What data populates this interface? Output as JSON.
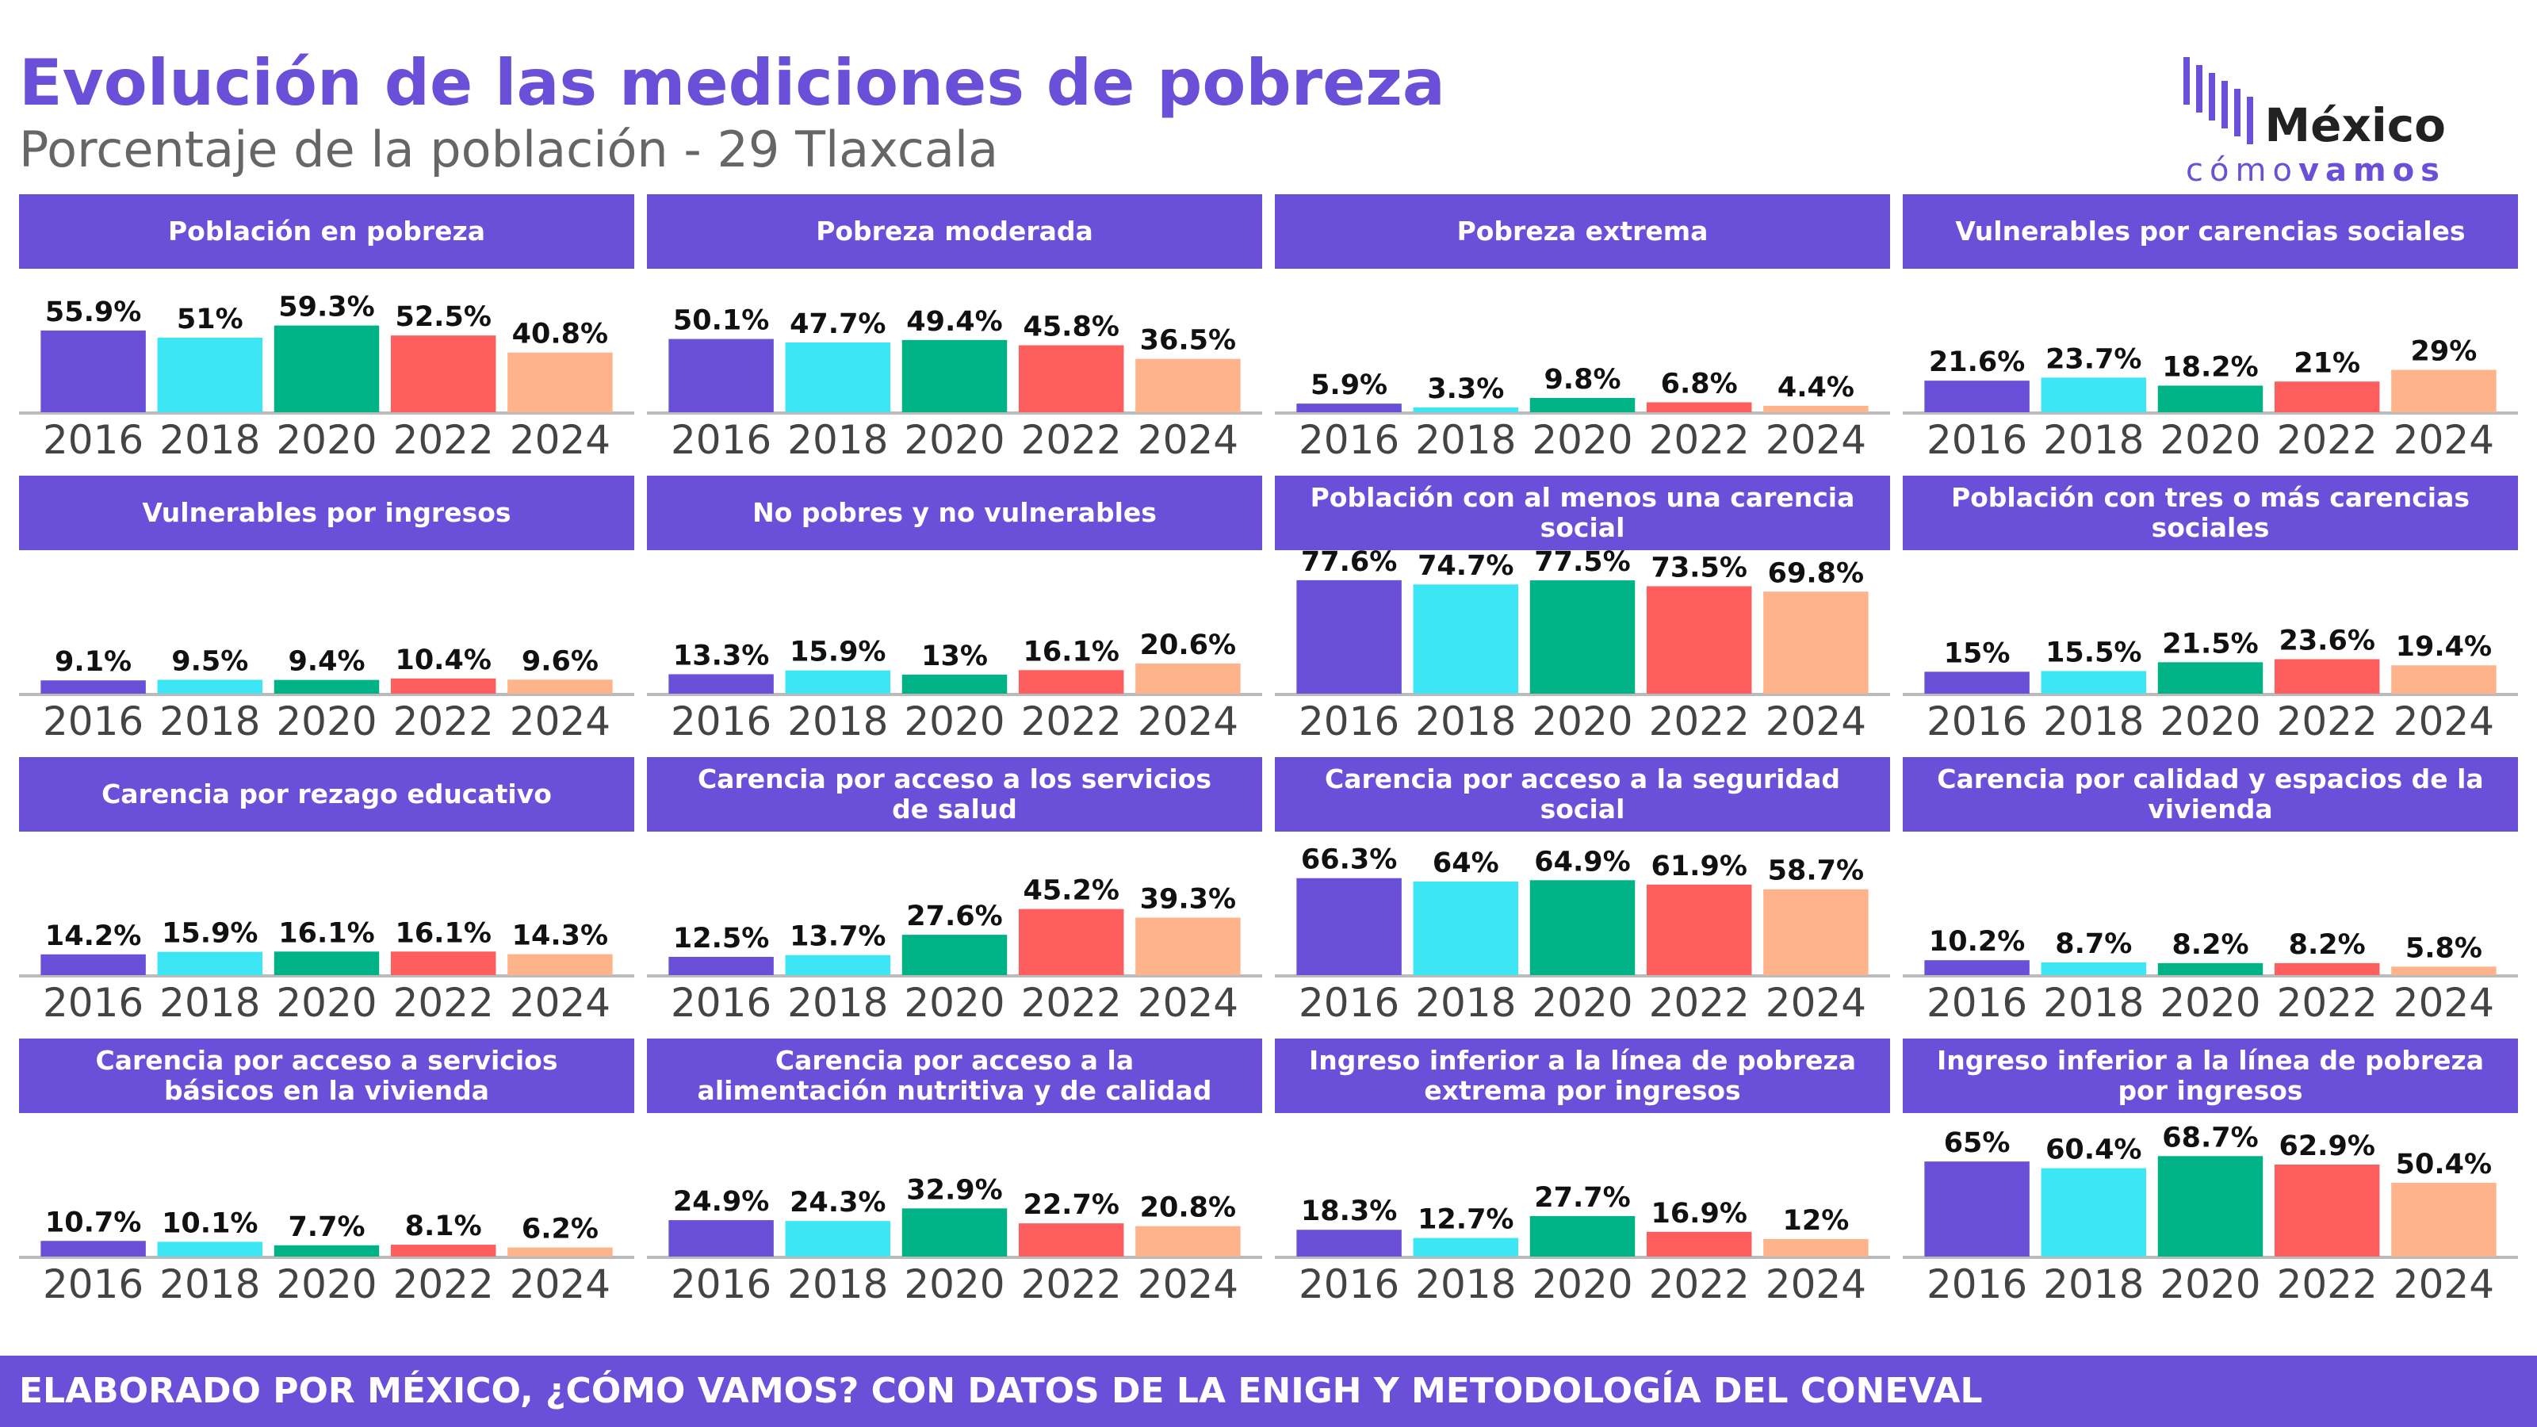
{
  "header": {
    "title": "Evolución de las mediciones de pobreza",
    "subtitle": "Porcentaje de la población - 29 Tlaxcala"
  },
  "logo": {
    "name": "México",
    "tag_a": "cómo",
    "tag_b": "vamos"
  },
  "footer": "ELABORADO POR MÉXICO, ¿CÓMO VAMOS? CON DATOS DE LA ENIGH Y METODOLOGÍA DEL CONEVAL",
  "chart_data": [
    {
      "type": "bar",
      "title": "Población en pobreza",
      "categories": [
        "2016",
        "2018",
        "2020",
        "2022",
        "2024"
      ],
      "values": [
        55.9,
        51,
        59.3,
        52.5,
        40.8
      ],
      "value_labels": [
        "55.9%",
        "51%",
        "59.3%",
        "52.5%",
        "40.8%"
      ],
      "colors": [
        "#6a4fd8",
        "#3de6f5",
        "#00b386",
        "#ff5e5e",
        "#ffb38a"
      ],
      "ylim": [
        0,
        90
      ]
    },
    {
      "type": "bar",
      "title": "Pobreza moderada",
      "categories": [
        "2016",
        "2018",
        "2020",
        "2022",
        "2024"
      ],
      "values": [
        50.1,
        47.7,
        49.4,
        45.8,
        36.5
      ],
      "value_labels": [
        "50.1%",
        "47.7%",
        "49.4%",
        "45.8%",
        "36.5%"
      ],
      "colors": [
        "#6a4fd8",
        "#3de6f5",
        "#00b386",
        "#ff5e5e",
        "#ffb38a"
      ],
      "ylim": [
        0,
        90
      ]
    },
    {
      "type": "bar",
      "title": "Pobreza extrema",
      "categories": [
        "2016",
        "2018",
        "2020",
        "2022",
        "2024"
      ],
      "values": [
        5.9,
        3.3,
        9.8,
        6.8,
        4.4
      ],
      "value_labels": [
        "5.9%",
        "3.3%",
        "9.8%",
        "6.8%",
        "4.4%"
      ],
      "colors": [
        "#6a4fd8",
        "#3de6f5",
        "#00b386",
        "#ff5e5e",
        "#ffb38a"
      ],
      "ylim": [
        0,
        90
      ]
    },
    {
      "type": "bar",
      "title": "Vulnerables por carencias sociales",
      "categories": [
        "2016",
        "2018",
        "2020",
        "2022",
        "2024"
      ],
      "values": [
        21.6,
        23.7,
        18.2,
        21,
        29
      ],
      "value_labels": [
        "21.6%",
        "23.7%",
        "18.2%",
        "21%",
        "29%"
      ],
      "colors": [
        "#6a4fd8",
        "#3de6f5",
        "#00b386",
        "#ff5e5e",
        "#ffb38a"
      ],
      "ylim": [
        0,
        90
      ]
    },
    {
      "type": "bar",
      "title": "Vulnerables por ingresos",
      "categories": [
        "2016",
        "2018",
        "2020",
        "2022",
        "2024"
      ],
      "values": [
        9.1,
        9.5,
        9.4,
        10.4,
        9.6
      ],
      "value_labels": [
        "9.1%",
        "9.5%",
        "9.4%",
        "10.4%",
        "9.6%"
      ],
      "colors": [
        "#6a4fd8",
        "#3de6f5",
        "#00b386",
        "#ff5e5e",
        "#ffb38a"
      ],
      "ylim": [
        0,
        90
      ]
    },
    {
      "type": "bar",
      "title": "No pobres y no vulnerables",
      "categories": [
        "2016",
        "2018",
        "2020",
        "2022",
        "2024"
      ],
      "values": [
        13.3,
        15.9,
        13,
        16.1,
        20.6
      ],
      "value_labels": [
        "13.3%",
        "15.9%",
        "13%",
        "16.1%",
        "20.6%"
      ],
      "colors": [
        "#6a4fd8",
        "#3de6f5",
        "#00b386",
        "#ff5e5e",
        "#ffb38a"
      ],
      "ylim": [
        0,
        90
      ]
    },
    {
      "type": "bar",
      "title": "Población con al menos una carencia social",
      "categories": [
        "2016",
        "2018",
        "2020",
        "2022",
        "2024"
      ],
      "values": [
        77.6,
        74.7,
        77.5,
        73.5,
        69.8
      ],
      "value_labels": [
        "77.6%",
        "74.7%",
        "77.5%",
        "73.5%",
        "69.8%"
      ],
      "colors": [
        "#6a4fd8",
        "#3de6f5",
        "#00b386",
        "#ff5e5e",
        "#ffb38a"
      ],
      "ylim": [
        0,
        90
      ]
    },
    {
      "type": "bar",
      "title": "Población con tres o más carencias sociales",
      "categories": [
        "2016",
        "2018",
        "2020",
        "2022",
        "2024"
      ],
      "values": [
        15,
        15.5,
        21.5,
        23.6,
        19.4
      ],
      "value_labels": [
        "15%",
        "15.5%",
        "21.5%",
        "23.6%",
        "19.4%"
      ],
      "colors": [
        "#6a4fd8",
        "#3de6f5",
        "#00b386",
        "#ff5e5e",
        "#ffb38a"
      ],
      "ylim": [
        0,
        90
      ]
    },
    {
      "type": "bar",
      "title": "Carencia por rezago educativo",
      "categories": [
        "2016",
        "2018",
        "2020",
        "2022",
        "2024"
      ],
      "values": [
        14.2,
        15.9,
        16.1,
        16.1,
        14.3
      ],
      "value_labels": [
        "14.2%",
        "15.9%",
        "16.1%",
        "16.1%",
        "14.3%"
      ],
      "colors": [
        "#6a4fd8",
        "#3de6f5",
        "#00b386",
        "#ff5e5e",
        "#ffb38a"
      ],
      "ylim": [
        0,
        90
      ]
    },
    {
      "type": "bar",
      "title": "Carencia por acceso a los servicios de salud",
      "categories": [
        "2016",
        "2018",
        "2020",
        "2022",
        "2024"
      ],
      "values": [
        12.5,
        13.7,
        27.6,
        45.2,
        39.3
      ],
      "value_labels": [
        "12.5%",
        "13.7%",
        "27.6%",
        "45.2%",
        "39.3%"
      ],
      "colors": [
        "#6a4fd8",
        "#3de6f5",
        "#00b386",
        "#ff5e5e",
        "#ffb38a"
      ],
      "ylim": [
        0,
        90
      ]
    },
    {
      "type": "bar",
      "title": "Carencia por acceso a la seguridad social",
      "categories": [
        "2016",
        "2018",
        "2020",
        "2022",
        "2024"
      ],
      "values": [
        66.3,
        64,
        64.9,
        61.9,
        58.7
      ],
      "value_labels": [
        "66.3%",
        "64%",
        "64.9%",
        "61.9%",
        "58.7%"
      ],
      "colors": [
        "#6a4fd8",
        "#3de6f5",
        "#00b386",
        "#ff5e5e",
        "#ffb38a"
      ],
      "ylim": [
        0,
        90
      ]
    },
    {
      "type": "bar",
      "title": "Carencia por calidad y espacios de la vivienda",
      "categories": [
        "2016",
        "2018",
        "2020",
        "2022",
        "2024"
      ],
      "values": [
        10.2,
        8.7,
        8.2,
        8.2,
        5.8
      ],
      "value_labels": [
        "10.2%",
        "8.7%",
        "8.2%",
        "8.2%",
        "5.8%"
      ],
      "colors": [
        "#6a4fd8",
        "#3de6f5",
        "#00b386",
        "#ff5e5e",
        "#ffb38a"
      ],
      "ylim": [
        0,
        90
      ]
    },
    {
      "type": "bar",
      "title": "Carencia por acceso a servicios básicos en la vivienda",
      "categories": [
        "2016",
        "2018",
        "2020",
        "2022",
        "2024"
      ],
      "values": [
        10.7,
        10.1,
        7.7,
        8.1,
        6.2
      ],
      "value_labels": [
        "10.7%",
        "10.1%",
        "7.7%",
        "8.1%",
        "6.2%"
      ],
      "colors": [
        "#6a4fd8",
        "#3de6f5",
        "#00b386",
        "#ff5e5e",
        "#ffb38a"
      ],
      "ylim": [
        0,
        90
      ]
    },
    {
      "type": "bar",
      "title": "Carencia por acceso a la alimentación nutritiva y de calidad",
      "categories": [
        "2016",
        "2018",
        "2020",
        "2022",
        "2024"
      ],
      "values": [
        24.9,
        24.3,
        32.9,
        22.7,
        20.8
      ],
      "value_labels": [
        "24.9%",
        "24.3%",
        "32.9%",
        "22.7%",
        "20.8%"
      ],
      "colors": [
        "#6a4fd8",
        "#3de6f5",
        "#00b386",
        "#ff5e5e",
        "#ffb38a"
      ],
      "ylim": [
        0,
        90
      ]
    },
    {
      "type": "bar",
      "title": "Ingreso inferior a la línea de pobreza extrema por ingresos",
      "categories": [
        "2016",
        "2018",
        "2020",
        "2022",
        "2024"
      ],
      "values": [
        18.3,
        12.7,
        27.7,
        16.9,
        12
      ],
      "value_labels": [
        "18.3%",
        "12.7%",
        "27.7%",
        "16.9%",
        "12%"
      ],
      "colors": [
        "#6a4fd8",
        "#3de6f5",
        "#00b386",
        "#ff5e5e",
        "#ffb38a"
      ],
      "ylim": [
        0,
        90
      ]
    },
    {
      "type": "bar",
      "title": "Ingreso inferior a la línea de pobreza por ingresos",
      "categories": [
        "2016",
        "2018",
        "2020",
        "2022",
        "2024"
      ],
      "values": [
        65,
        60.4,
        68.7,
        62.9,
        50.4
      ],
      "value_labels": [
        "65%",
        "60.4%",
        "68.7%",
        "62.9%",
        "50.4%"
      ],
      "colors": [
        "#6a4fd8",
        "#3de6f5",
        "#00b386",
        "#ff5e5e",
        "#ffb38a"
      ],
      "ylim": [
        0,
        90
      ]
    }
  ]
}
